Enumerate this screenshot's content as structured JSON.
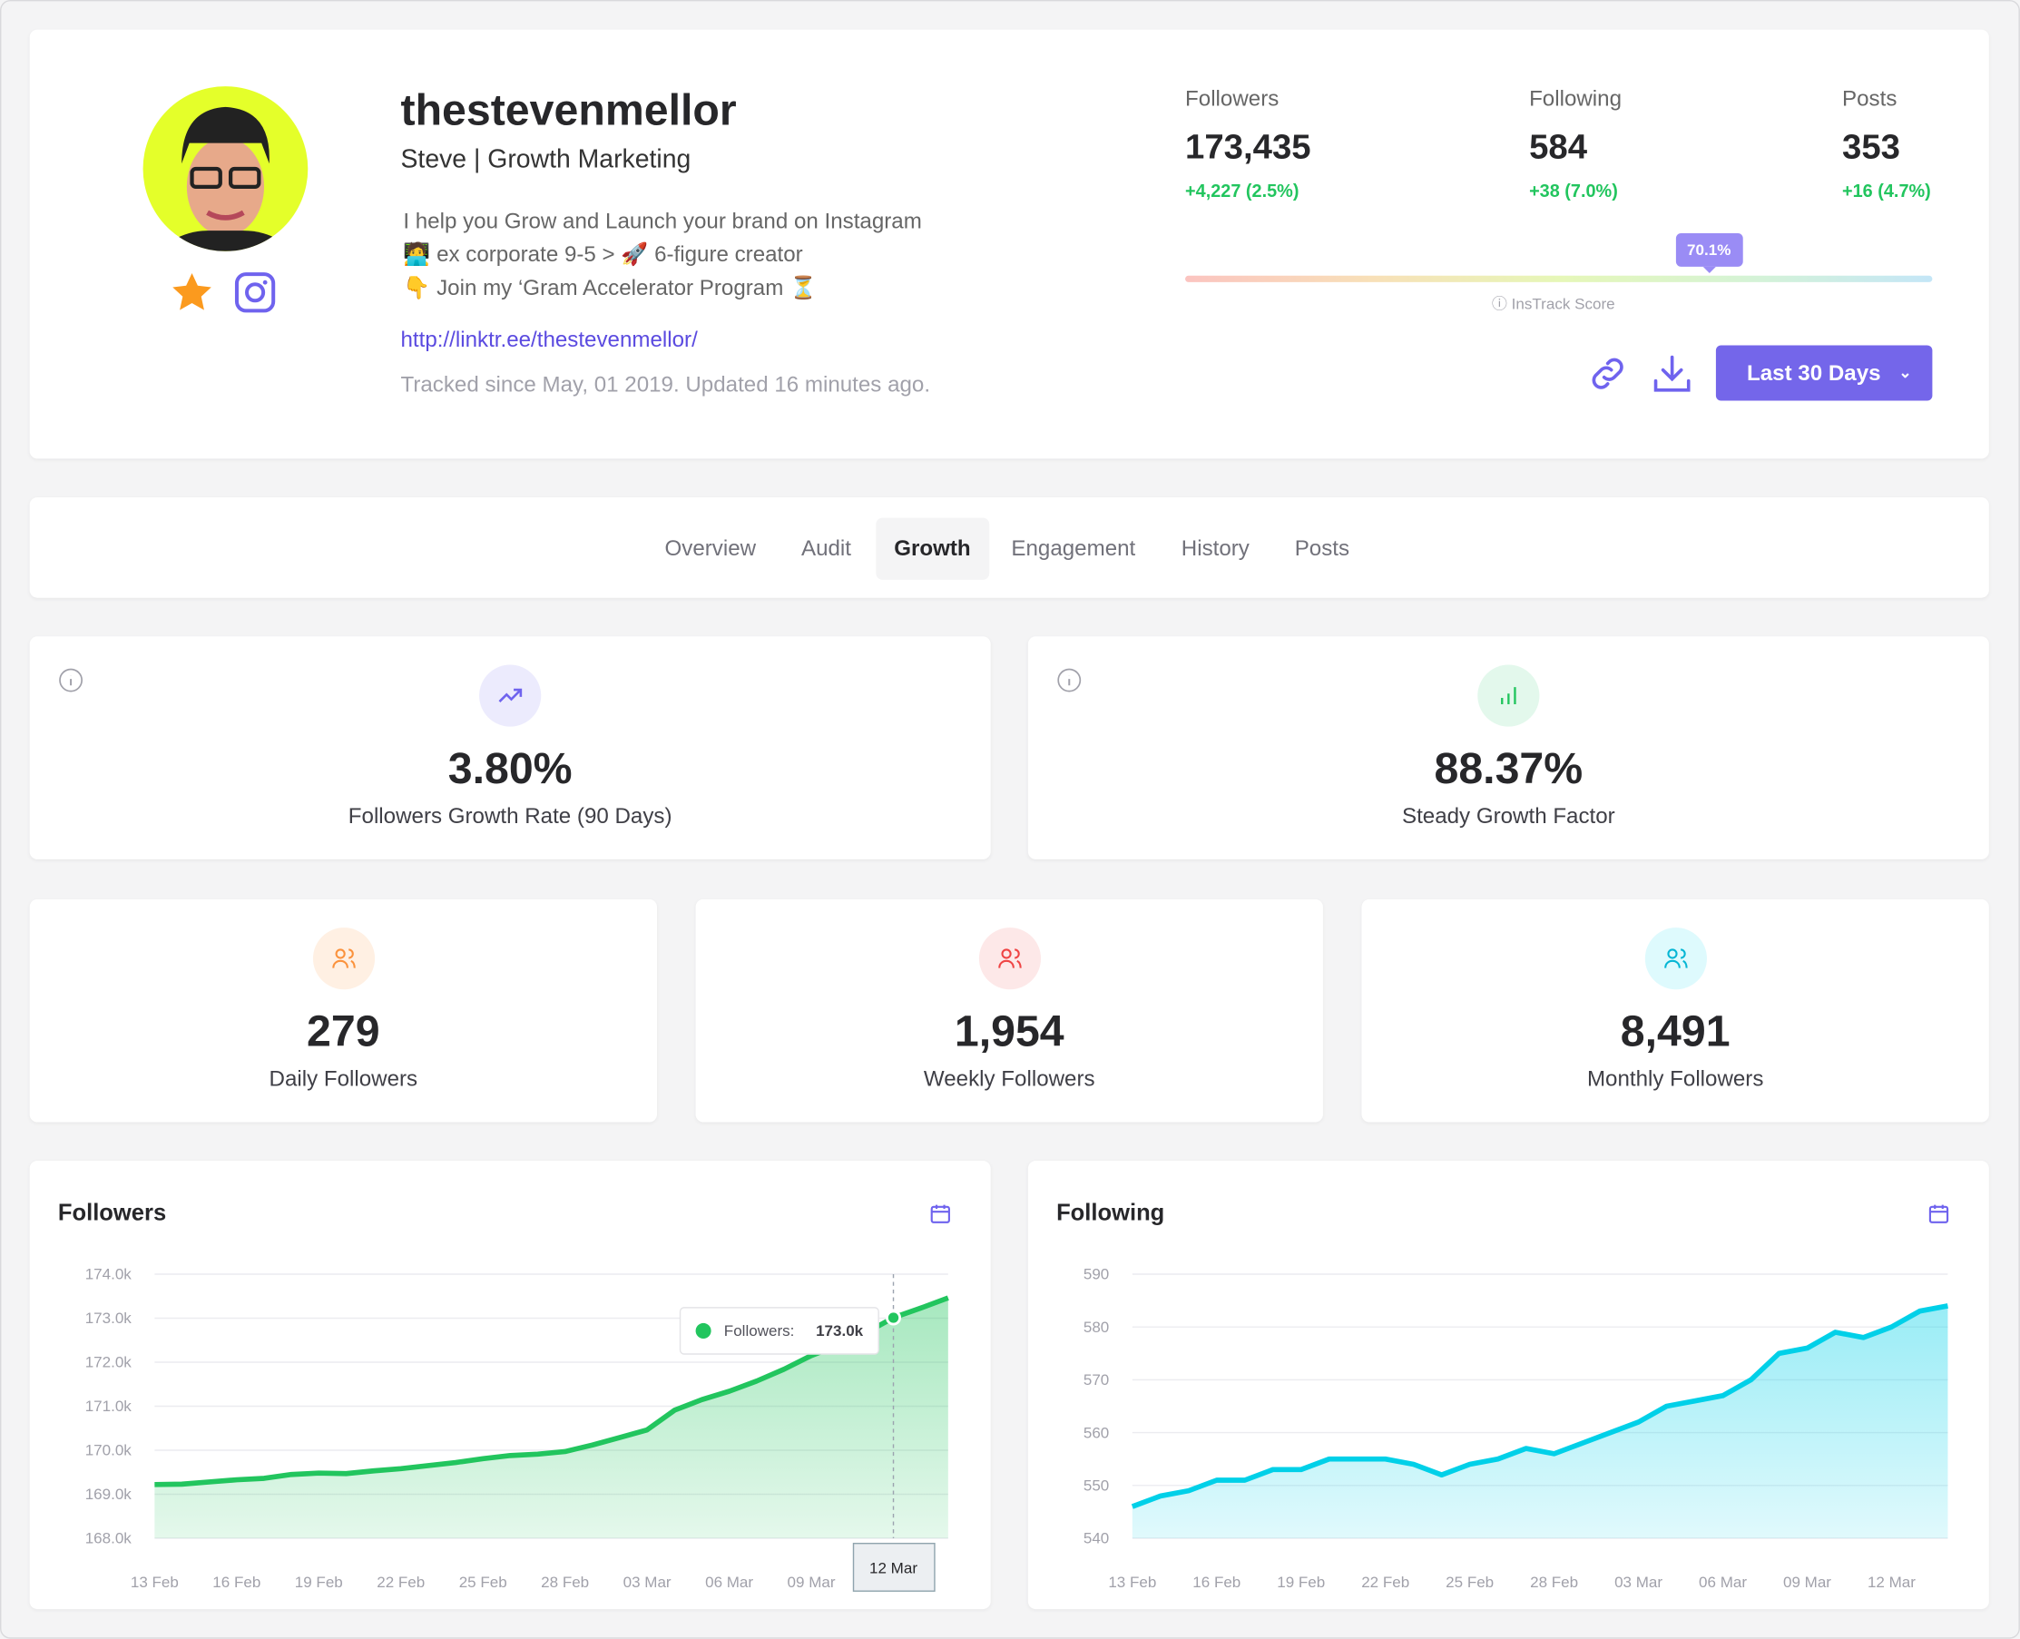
{
  "profile": {
    "username": "thestevenmellor",
    "subtitle": "Steve | Growth Marketing",
    "bio": [
      "I help you Grow and Launch your brand on Instagram",
      "🧑‍💻 ex corporate 9-5 > 🚀 6-figure creator",
      "👇 Join my ‘Gram Accelerator Program ⏳"
    ],
    "link": "http://linktr.ee/thestevenmellor/",
    "tracked": "Tracked since May, 01 2019. Updated 16 minutes ago."
  },
  "stats": [
    {
      "label": "Followers",
      "value": "173,435",
      "delta": "+4,227 (2.5%)"
    },
    {
      "label": "Following",
      "value": "584",
      "delta": "+38 (7.0%)"
    },
    {
      "label": "Posts",
      "value": "353",
      "delta": "+16 (4.7%)"
    }
  ],
  "score": {
    "value": 70.1,
    "text": "70.1%",
    "label": "InsTrack Score"
  },
  "actions": {
    "range_button": "Last 30 Days"
  },
  "tabs": [
    {
      "label": "Overview"
    },
    {
      "label": "Audit"
    },
    {
      "label": "Growth",
      "active": true
    },
    {
      "label": "Engagement"
    },
    {
      "label": "History"
    },
    {
      "label": "Posts"
    }
  ],
  "kpis": [
    {
      "value": "3.80%",
      "label": "Followers Growth Rate (90 Days)"
    },
    {
      "value": "88.37%",
      "label": "Steady Growth Factor"
    },
    {
      "value": "279",
      "label": "Daily Followers"
    },
    {
      "value": "1,954",
      "label": "Weekly Followers"
    },
    {
      "value": "8,491",
      "label": "Monthly Followers"
    }
  ],
  "colors": {
    "accent": "#7466ea",
    "positive": "#22c55e",
    "followers_line": "#22c55e",
    "following_line": "#00d0e8"
  },
  "chart_data": [
    {
      "type": "area",
      "title": "Followers",
      "x_ticks": [
        "13 Feb",
        "16 Feb",
        "19 Feb",
        "22 Feb",
        "25 Feb",
        "28 Feb",
        "03 Mar",
        "06 Mar",
        "09 Mar"
      ],
      "y_ticks": [
        "168.0k",
        "169.0k",
        "170.0k",
        "171.0k",
        "172.0k",
        "173.0k",
        "174.0k"
      ],
      "ylim": [
        168000,
        174000
      ],
      "grid": true,
      "x_start": "13 Feb",
      "x_end": "14 Mar",
      "series": [
        {
          "name": "Followers",
          "values": [
            169220,
            169230,
            169280,
            169330,
            169360,
            169450,
            169480,
            169470,
            169530,
            169580,
            169650,
            169720,
            169810,
            169880,
            169910,
            169970,
            170120,
            170290,
            170460,
            170910,
            171150,
            171340,
            171570,
            171840,
            172150,
            172390,
            172670,
            173010,
            173230,
            173460
          ]
        }
      ],
      "tooltip": {
        "date": "12 Mar",
        "label": "Followers:",
        "value": "173.0k"
      }
    },
    {
      "type": "area",
      "title": "Following",
      "x_ticks": [
        "13 Feb",
        "16 Feb",
        "19 Feb",
        "22 Feb",
        "25 Feb",
        "28 Feb",
        "03 Mar",
        "06 Mar",
        "09 Mar",
        "12 Mar"
      ],
      "y_ticks": [
        "540",
        "550",
        "560",
        "570",
        "580",
        "590"
      ],
      "ylim": [
        540,
        590
      ],
      "grid": true,
      "x_start": "13 Feb",
      "x_end": "14 Mar",
      "series": [
        {
          "name": "Following",
          "values": [
            546,
            548,
            549,
            551,
            551,
            553,
            553,
            555,
            555,
            555,
            554,
            552,
            554,
            555,
            557,
            556,
            558,
            560,
            562,
            565,
            566,
            567,
            570,
            575,
            576,
            579,
            578,
            580,
            583,
            584
          ]
        }
      ]
    }
  ]
}
